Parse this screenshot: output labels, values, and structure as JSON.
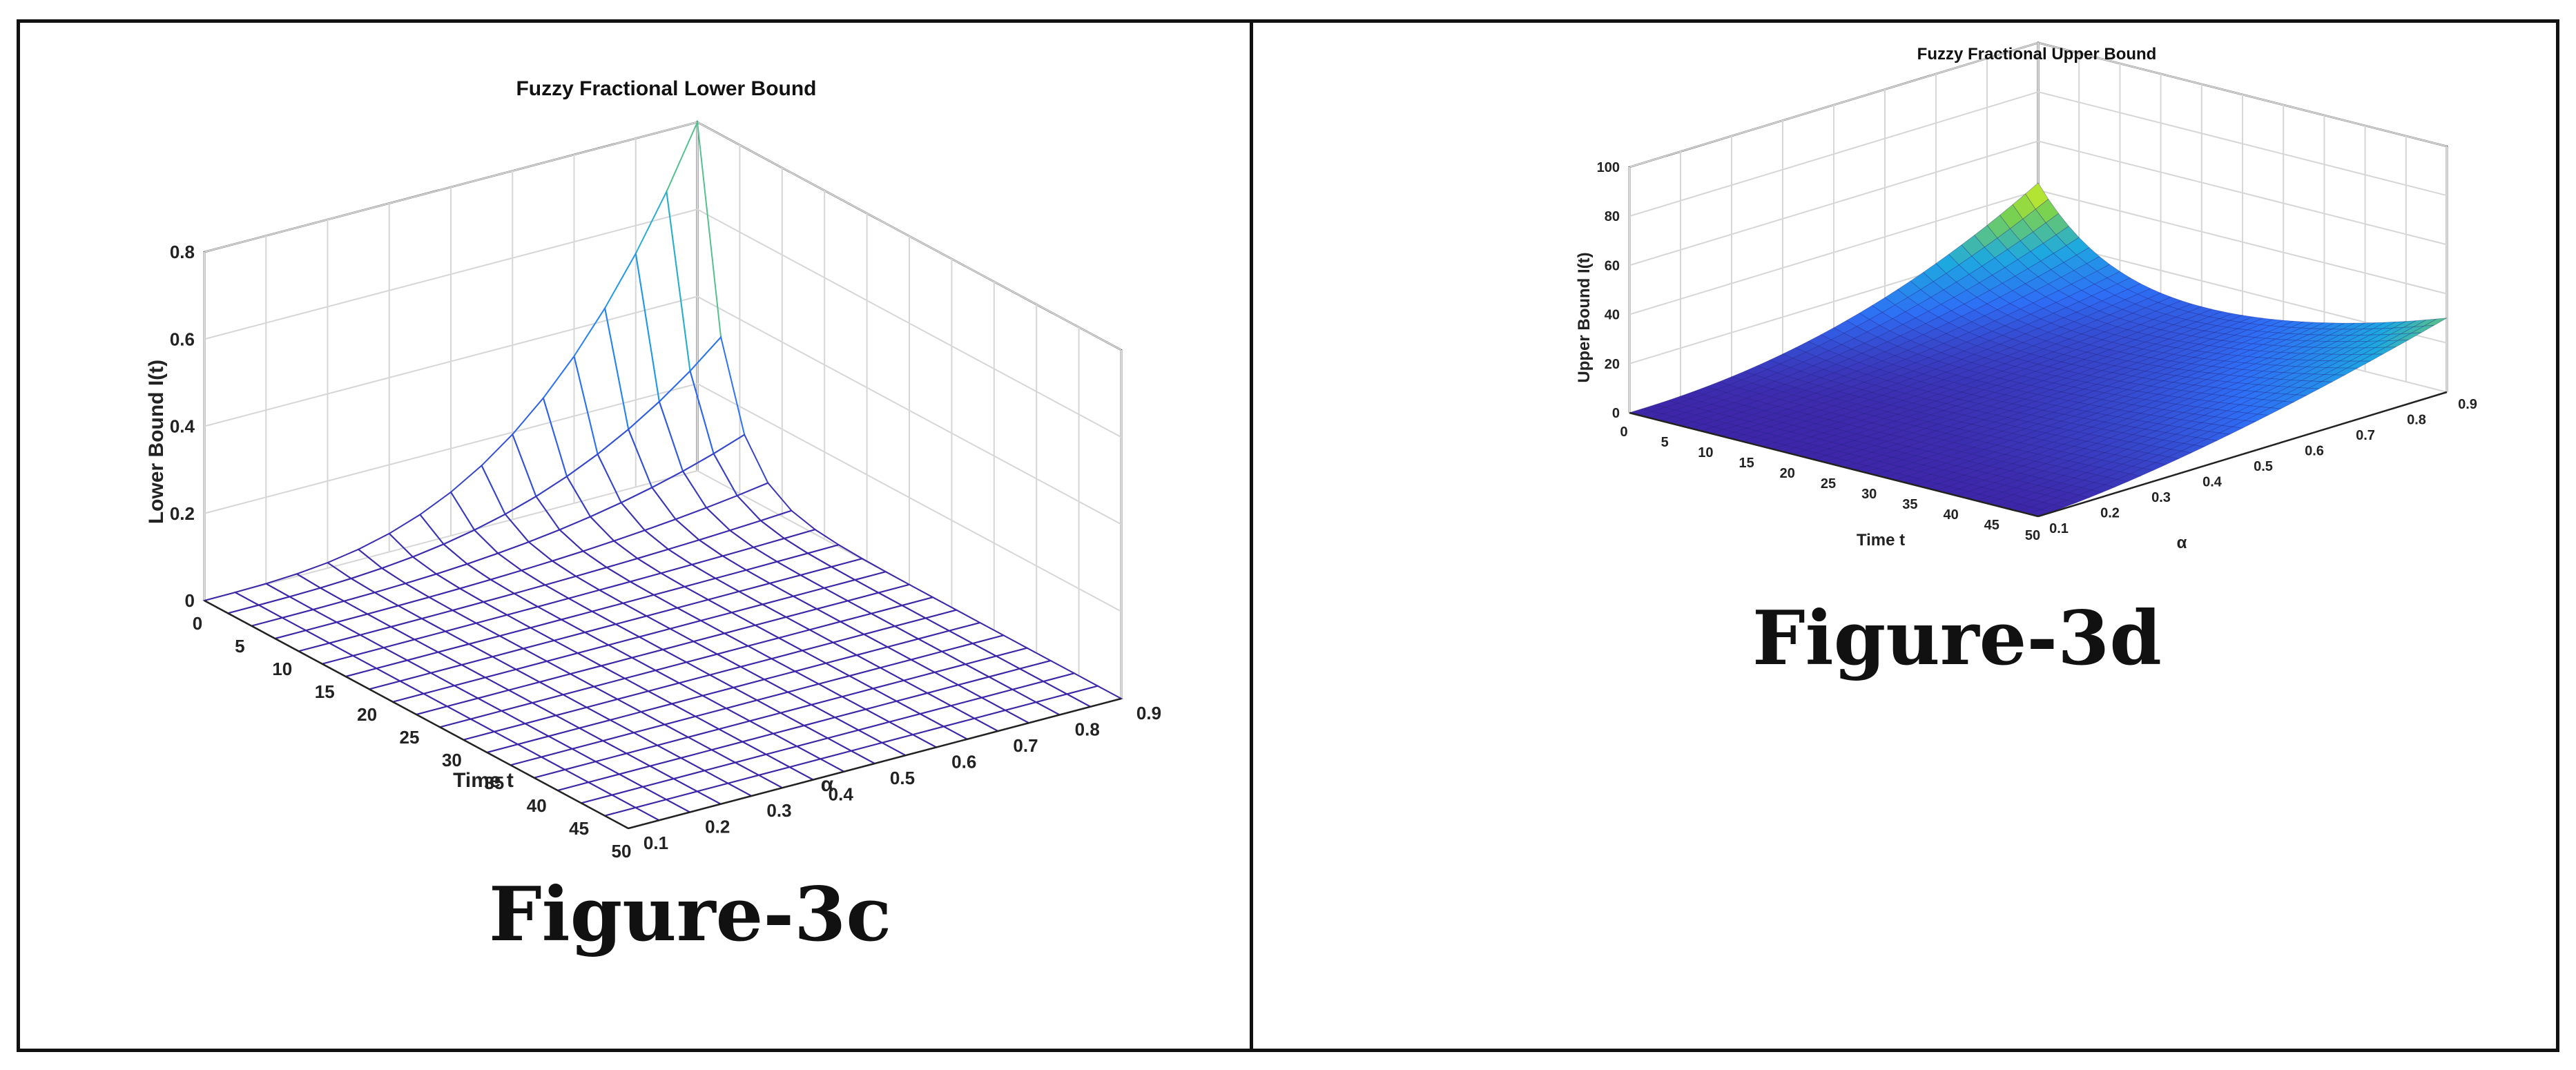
{
  "chart_data": [
    {
      "type": "surface3d",
      "title": "Fuzzy Fractional Lower Bound",
      "xlabel": "Time t",
      "ylabel": "α",
      "zlabel": "Lower Bound I(t)",
      "x_ticks": [
        "0",
        "5",
        "10",
        "15",
        "20",
        "25",
        "30",
        "35",
        "40",
        "45",
        "50"
      ],
      "y_ticks": [
        "0.1",
        "0.2",
        "0.3",
        "0.4",
        "0.5",
        "0.6",
        "0.7",
        "0.8",
        "0.9"
      ],
      "z_ticks": [
        "0",
        "0.2",
        "0.4",
        "0.6",
        "0.8"
      ],
      "xlim": [
        0,
        50
      ],
      "ylim": [
        0.1,
        0.9
      ],
      "zlim": [
        0,
        0.8
      ],
      "peak": {
        "t": 0,
        "alpha": 0.9,
        "value": 0.8
      },
      "grid": true,
      "colormap": "parula",
      "caption": "Figure-3c"
    },
    {
      "type": "surface3d",
      "title": "Fuzzy Fractional Upper Bound",
      "xlabel": "Time t",
      "ylabel": "α",
      "zlabel": "Upper Bound I(t)",
      "x_ticks": [
        "0",
        "5",
        "10",
        "15",
        "20",
        "25",
        "30",
        "35",
        "40",
        "45",
        "50"
      ],
      "y_ticks": [
        "0.1",
        "0.2",
        "0.3",
        "0.4",
        "0.5",
        "0.6",
        "0.7",
        "0.8",
        "0.9"
      ],
      "z_ticks": [
        "0",
        "20",
        "40",
        "60",
        "80",
        "100"
      ],
      "xlim": [
        0,
        50
      ],
      "ylim": [
        0.1,
        0.9
      ],
      "zlim": [
        0,
        100
      ],
      "peak": {
        "t": 0,
        "alpha": 0.9,
        "value": 43
      },
      "corner_values": {
        "t0_a0.1": 0,
        "t50_a0.1": 0,
        "t50_a0.9": 30
      },
      "grid": true,
      "colormap": "parula",
      "caption": "Figure-3d"
    }
  ],
  "colors": {
    "surface_low": "#3e26a8",
    "surface_mid": "#1ea9e0",
    "surface_high": "#f9fb0e",
    "frame": "#111111",
    "grid": "#d6d6d6"
  }
}
